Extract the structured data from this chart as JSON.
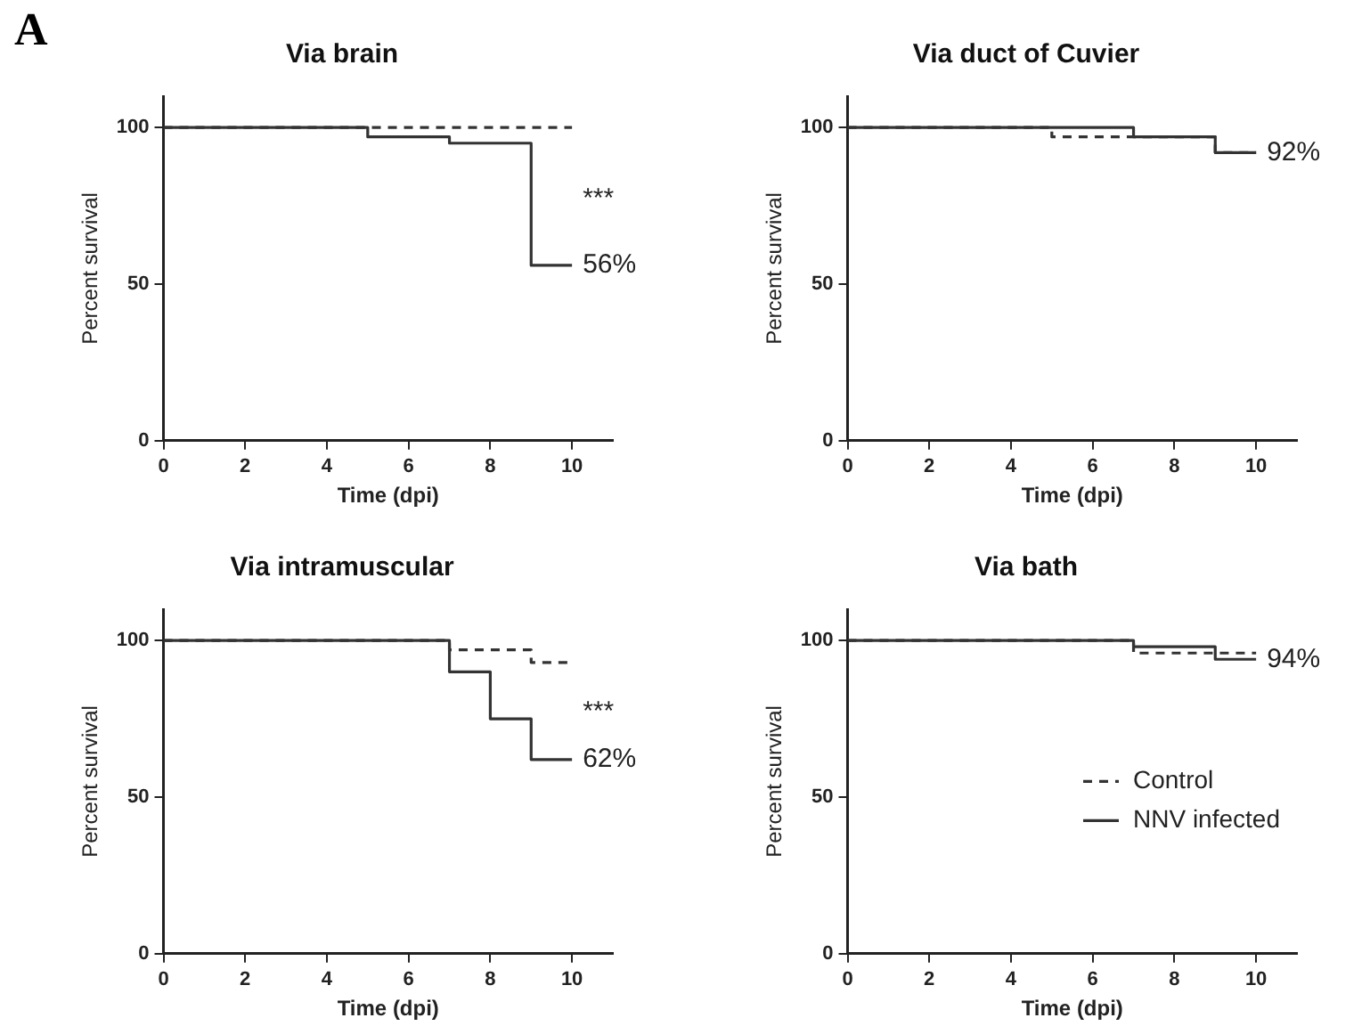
{
  "chart_data": [
    {
      "type": "step",
      "title": "Via brain",
      "xlabel": "Time (dpi)",
      "ylabel": "Percent survival",
      "xlim": [
        0,
        11
      ],
      "xticks": [
        0,
        2,
        4,
        6,
        8,
        10
      ],
      "ylim": [
        0,
        110
      ],
      "yticks": [
        0,
        50,
        100
      ],
      "grid": false,
      "legend": false,
      "annotations": [
        "A",
        "***"
      ],
      "series": [
        {
          "color": "#333333",
          "line_style": "dashed",
          "x": [
            0,
            10
          ],
          "values": [
            100,
            100
          ]
        },
        {
          "color": "#333333",
          "line_style": "solid",
          "x": [
            0,
            5,
            7,
            9,
            10
          ],
          "values": [
            100,
            97,
            95,
            56,
            56
          ],
          "value_labels": [
            null,
            null,
            null,
            null,
            "56%"
          ]
        }
      ]
    },
    {
      "type": "step",
      "title": "Via duct of Cuvier",
      "xlabel": "Time (dpi)",
      "ylabel": "Percent survival",
      "xlim": [
        0,
        11
      ],
      "xticks": [
        0,
        2,
        4,
        6,
        8,
        10
      ],
      "ylim": [
        0,
        110
      ],
      "yticks": [
        0,
        50,
        100
      ],
      "grid": false,
      "legend": false,
      "series": [
        {
          "color": "#333333",
          "line_style": "dashed",
          "x": [
            0,
            5,
            9,
            10
          ],
          "values": [
            100,
            97,
            92,
            92
          ]
        },
        {
          "color": "#333333",
          "line_style": "solid",
          "x": [
            0,
            7,
            9,
            10
          ],
          "values": [
            100,
            97,
            92,
            92
          ],
          "value_labels": [
            null,
            null,
            null,
            "92%"
          ]
        }
      ]
    },
    {
      "type": "step",
      "title": "Via intramuscular",
      "xlabel": "Time (dpi)",
      "ylabel": "Percent survival",
      "xlim": [
        0,
        11
      ],
      "xticks": [
        0,
        2,
        4,
        6,
        8,
        10
      ],
      "ylim": [
        0,
        110
      ],
      "yticks": [
        0,
        50,
        100
      ],
      "grid": false,
      "legend": false,
      "annotations": [
        "***"
      ],
      "series": [
        {
          "color": "#333333",
          "line_style": "dashed",
          "x": [
            0,
            7,
            9,
            10
          ],
          "values": [
            100,
            97,
            93,
            93
          ]
        },
        {
          "color": "#333333",
          "line_style": "solid",
          "x": [
            0,
            7,
            8,
            9,
            10
          ],
          "values": [
            100,
            90,
            75,
            62,
            62
          ],
          "value_labels": [
            null,
            null,
            null,
            null,
            "62%"
          ]
        }
      ]
    },
    {
      "type": "step",
      "title": "Via bath",
      "xlabel": "Time (dpi)",
      "ylabel": "Percent survival",
      "xlim": [
        0,
        11
      ],
      "xticks": [
        0,
        2,
        4,
        6,
        8,
        10
      ],
      "ylim": [
        0,
        110
      ],
      "yticks": [
        0,
        50,
        100
      ],
      "grid": false,
      "legend": "right",
      "series": [
        {
          "name": "Control",
          "color": "#333333",
          "line_style": "dashed",
          "x": [
            0,
            7,
            10
          ],
          "values": [
            100,
            96,
            96
          ]
        },
        {
          "name": "NNV infected",
          "color": "#333333",
          "line_style": "solid",
          "x": [
            0,
            7,
            9,
            10
          ],
          "values": [
            100,
            98,
            94,
            94
          ],
          "value_labels": [
            null,
            null,
            null,
            "94%"
          ]
        }
      ]
    }
  ]
}
